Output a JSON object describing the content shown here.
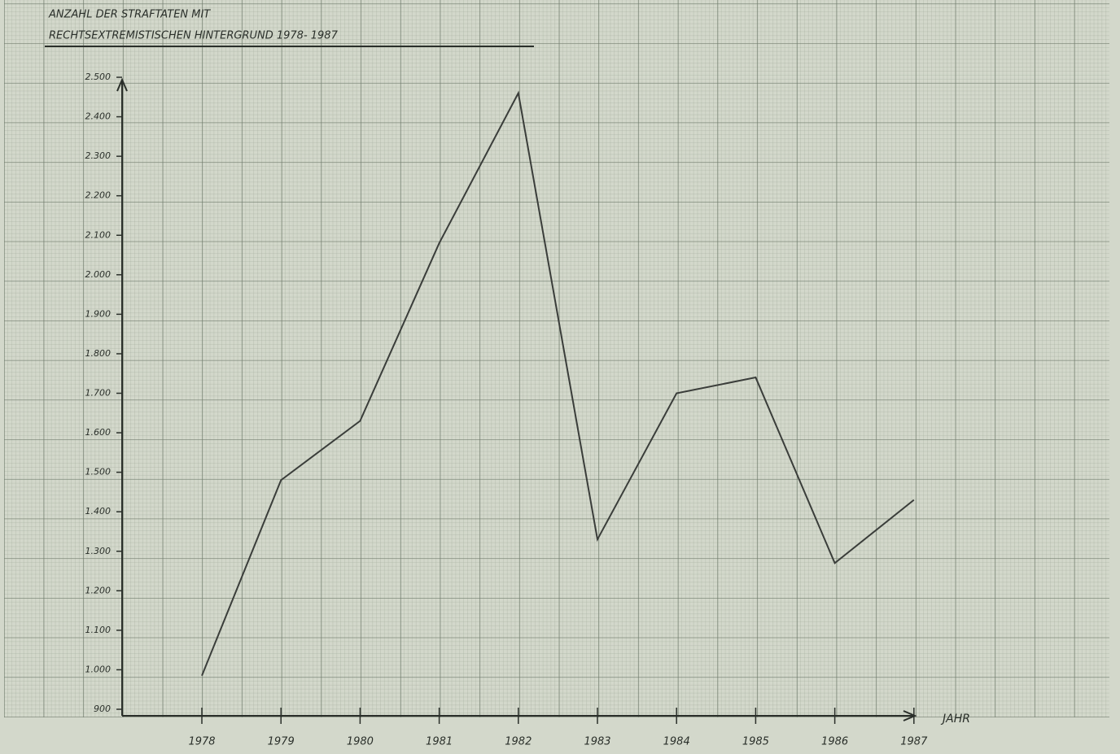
{
  "chart_data": {
    "type": "line",
    "title": [
      "ANZAHL DER STRAFTATEN MIT",
      "RECHTSEXTREMISTISCHEN HINTERGRUND 1978- 1987"
    ],
    "x_label": "JAHR",
    "categories": [
      "1978",
      "1979",
      "1980",
      "1981",
      "1982",
      "1983",
      "1984",
      "1985",
      "1986",
      "1987"
    ],
    "series": [
      {
        "color": "#3a3d3a",
        "values": [
          985,
          1480,
          1630,
          2080,
          2460,
          1330,
          1700,
          1740,
          1270,
          1430
        ]
      }
    ],
    "ylim": [
      900,
      2500
    ],
    "yticks": [
      {
        "value": 900,
        "label": "900"
      },
      {
        "value": 1000,
        "label": "1.000"
      },
      {
        "value": 1100,
        "label": "1.100"
      },
      {
        "value": 1200,
        "label": "1.200"
      },
      {
        "value": 1300,
        "label": "1.300"
      },
      {
        "value": 1400,
        "label": "1.400"
      },
      {
        "value": 1500,
        "label": "1.500"
      },
      {
        "value": 1600,
        "label": "1.600"
      },
      {
        "value": 1700,
        "label": "1.700"
      },
      {
        "value": 1800,
        "label": "1.800"
      },
      {
        "value": 1900,
        "label": "1.900"
      },
      {
        "value": 2000,
        "label": "2.000"
      },
      {
        "value": 2100,
        "label": "2.100"
      },
      {
        "value": 2200,
        "label": "2.200"
      },
      {
        "value": 2300,
        "label": "2.300"
      },
      {
        "value": 2400,
        "label": "2.400"
      },
      {
        "value": 2500,
        "label": "2.500"
      }
    ]
  }
}
